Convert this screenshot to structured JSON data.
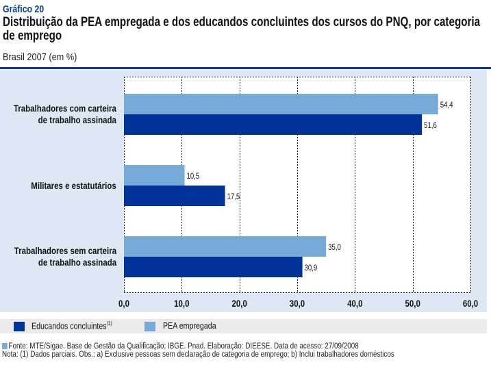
{
  "header": {
    "label": "Gráfico 20",
    "title": "Distribuição da PEA empregada e dos educandos concluintes dos cursos do PNQ, por categoria de emprego",
    "subtitle": "Brasil 2007 (em %)"
  },
  "colors": {
    "accent": "#0a3590",
    "panel": "#dde8f4",
    "educandos": "#00339a",
    "pea": "#78aad8",
    "legend_strip": "#ebebeb"
  },
  "legend": {
    "items": [
      {
        "label": "Educandos concluintes",
        "note": "(1)",
        "color": "#00339a"
      },
      {
        "label": "PEA empregada",
        "note": "",
        "color": "#78aad8"
      }
    ]
  },
  "footnotes": {
    "source": "Fonte: MTE/Sigae. Base de Gestão da Qualificação; IBGE. Pnad. Elaboração: DIEESE. Data de acesso: 27/09/2008",
    "note": "Nota: (1) Dados parciais. Obs.: a) Exclusive pessoas sem declaração de categoria de emprego; b) Inclui trabalhadores domésticos"
  },
  "chart_data": {
    "type": "bar",
    "orientation": "horizontal",
    "title": "Distribuição da PEA empregada e dos educandos concluintes dos cursos do PNQ, por categoria de emprego",
    "subtitle": "Brasil 2007 (em %)",
    "xlabel": "",
    "ylabel": "",
    "xlim": [
      0,
      60
    ],
    "x_ticks": [
      0,
      10,
      20,
      30,
      40,
      50,
      60
    ],
    "x_tick_labels": [
      "0,0",
      "10,0",
      "20,0",
      "30,0",
      "40,0",
      "50,0",
      "60,0"
    ],
    "grid": true,
    "legend_position": "bottom",
    "categories": [
      [
        "Trabalhadores com carteira",
        "de trabalho assinada"
      ],
      [
        "Militares e estatutários"
      ],
      [
        "Trabalhadores sem carteira",
        "de trabalho assinada"
      ]
    ],
    "series": [
      {
        "name": "PEA empregada",
        "color": "#78aad8",
        "values": [
          54.4,
          10.5,
          35.0
        ],
        "labels": [
          "54,4",
          "10,5",
          "35,0"
        ]
      },
      {
        "name": "Educandos concluintes",
        "color": "#00339a",
        "values": [
          51.6,
          17.5,
          30.9
        ],
        "labels": [
          "51,6",
          "17,5",
          "30,9"
        ]
      }
    ]
  }
}
